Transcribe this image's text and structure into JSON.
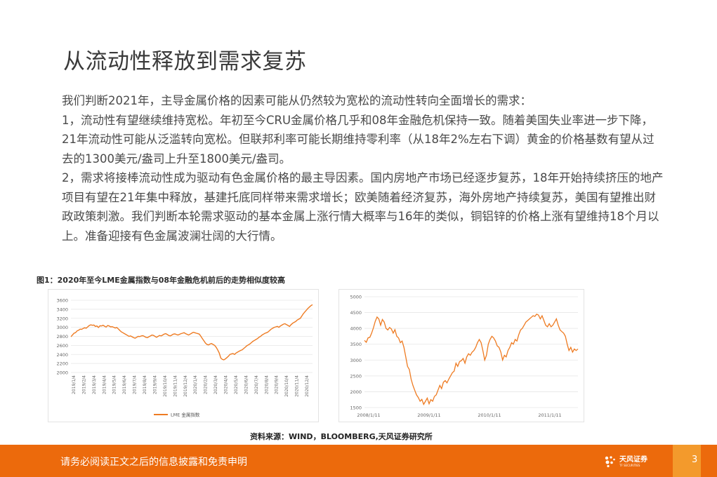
{
  "slide": {
    "title": "从流动性释放到需求复苏",
    "paragraphs": [
      "我们判断2021年，主导金属价格的因素可能从仍然较为宽松的流动性转向全面增长的需求：",
      "1，流动性有望继续维持宽松。年初至今CRU金属价格几乎和08年金融危机保持一致。随着美国失业率进一步下降，21年流动性可能从泛滥转向宽松。但联邦利率可能长期维持零利率（从18年2%左右下调）黄金的价格基数有望从过去的1300美元/盎司上升至1800美元/盎司。",
      "2，需求将接棒流动性成为驱动有色金属价格的最主导因素。国内房地产市场已经逐步复苏，18年开始持续挤压的地产项目有望在21年集中释放，基建托底同样带来需求增长；欧美随着经济复苏，海外房地产持续复苏，美国有望推出财政政策刺激。我们判断本轮需求驱动的基本金属上涨行情大概率与16年的类似，铜铝锌的价格上涨有望维持18个月以上。准备迎接有色金属波澜壮阔的大行情。"
    ],
    "figure_title": "图1：2020年至今LME金属指数与08年金融危机前后的走势相似度较高",
    "source": "资料来源：WIND，BLOOMBERG,天风证券研究所",
    "footer_text": "请务必阅读正文之后的信息披露和免责申明",
    "logo_text": "天风证券",
    "logo_sub": "TF SECURITIES",
    "page_number": "3"
  },
  "colors": {
    "accent": "#ec6a0c",
    "accent_light": "#f39a2c",
    "series": "#ee7b22"
  },
  "chart_data": [
    {
      "type": "line",
      "name": "left",
      "ylim": [
        2000,
        3600
      ],
      "yticks": [
        2000,
        2200,
        2400,
        2600,
        2800,
        3000,
        3200,
        3400,
        3600
      ],
      "grid": true,
      "legend": "bottom",
      "series": [
        {
          "name": "LME 金属指数",
          "values": [
            2790,
            2830,
            2870,
            2880,
            2920,
            2935,
            2960,
            2955,
            2975,
            2990,
            2980,
            3010,
            3040,
            3055,
            3045,
            3050,
            3020,
            3030,
            2995,
            3035,
            3030,
            3045,
            3025,
            3005,
            3040,
            3030,
            3010,
            3015,
            3000,
            2985,
            2995,
            2965,
            2930,
            2900,
            2880,
            2860,
            2840,
            2820,
            2800,
            2810,
            2790,
            2770,
            2760,
            2780,
            2800,
            2795,
            2810,
            2815,
            2800,
            2780,
            2770,
            2790,
            2810,
            2830,
            2820,
            2800,
            2780,
            2800,
            2820,
            2810,
            2830,
            2850,
            2860,
            2840,
            2820,
            2810,
            2830,
            2850,
            2855,
            2840,
            2830,
            2845,
            2860,
            2870,
            2880,
            2860,
            2845,
            2830,
            2850,
            2870,
            2890,
            2880,
            2870,
            2860,
            2850,
            2800,
            2750,
            2700,
            2650,
            2620,
            2610,
            2630,
            2640,
            2620,
            2600,
            2560,
            2500,
            2430,
            2320,
            2290,
            2280,
            2300,
            2330,
            2360,
            2400,
            2410,
            2420,
            2400,
            2430,
            2450,
            2470,
            2490,
            2500,
            2530,
            2560,
            2590,
            2610,
            2630,
            2660,
            2690,
            2710,
            2730,
            2750,
            2780,
            2800,
            2830,
            2850,
            2870,
            2880,
            2900,
            2930,
            2960,
            2980,
            3000,
            3010,
            3020,
            3000,
            3030,
            3050,
            3070,
            3080,
            3060,
            3040,
            3020,
            3060,
            3090,
            3110,
            3130,
            3160,
            3180,
            3200,
            3250,
            3300,
            3340,
            3380,
            3420,
            3450,
            3480,
            3500
          ]
        }
      ],
      "x_labels": [
        "2019/1/4",
        "2019/2/4",
        "2019/3/4",
        "2019/4/4",
        "2019/5/4",
        "2019/6/4",
        "2019/7/4",
        "2019/8/4",
        "2019/9/4",
        "2019/10/4",
        "2019/11/4",
        "2019/12/4",
        "2020/1/4",
        "2020/2/4",
        "2020/3/4",
        "2020/4/4",
        "2020/5/4",
        "2020/6/4",
        "2020/7/4",
        "2020/8/4",
        "2020/9/4",
        "2020/10/4",
        "2020/11/4",
        "2020/12/4"
      ]
    },
    {
      "type": "line",
      "name": "right",
      "ylim": [
        1500,
        5000
      ],
      "yticks": [
        1500,
        2000,
        2500,
        3000,
        3500,
        4000,
        4500,
        5000
      ],
      "grid": true,
      "x_labels": [
        "2008/1/11",
        "2009/1/11",
        "2010/1/11",
        "2011/1/11"
      ],
      "series": [
        {
          "name": "",
          "values": [
            3620,
            3560,
            3700,
            3720,
            3850,
            4020,
            4220,
            4360,
            4300,
            4100,
            4280,
            4200,
            4000,
            3950,
            4030,
            3980,
            3850,
            3960,
            3750,
            3700,
            3550,
            3600,
            3400,
            3100,
            2800,
            2700,
            2400,
            2200,
            2050,
            1900,
            1820,
            1700,
            1760,
            1600,
            1700,
            1800,
            1620,
            1750,
            1700,
            1850,
            1900,
            2050,
            2200,
            2100,
            2300,
            2350,
            2280,
            2400,
            2500,
            2600,
            2650,
            2900,
            2800,
            2950,
            2980,
            3050,
            2900,
            3100,
            3200,
            3150,
            3250,
            3300,
            3400,
            3550,
            3650,
            3550,
            3300,
            3000,
            3150,
            3500,
            3650,
            3750,
            3700,
            3600,
            3450,
            3400,
            3250,
            3000,
            3150,
            3100,
            3300,
            3400,
            3550,
            3500,
            3650,
            3600,
            3800,
            3950,
            4000,
            4100,
            4200,
            4250,
            4300,
            4350,
            4400,
            4380,
            4450,
            4420,
            4300,
            4400,
            4250,
            4100,
            4050,
            4150,
            4050,
            4100,
            4200,
            4300,
            4100,
            3950,
            3900,
            3850,
            3750,
            3500,
            3300,
            3400,
            3250,
            3350,
            3300,
            3350
          ]
        }
      ]
    }
  ]
}
